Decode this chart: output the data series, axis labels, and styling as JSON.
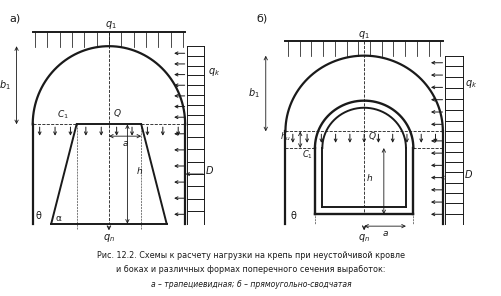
{
  "bg_color": "#ffffff",
  "line_color": "#1a1a1a",
  "fig_width": 5.02,
  "fig_height": 2.96,
  "caption_line1": "Рис. 12.2. Схемы к расчету нагрузки на крепь при неустойчивой кровле",
  "caption_line2": "и боках и различных формах поперечного сечения выработок:",
  "caption_line3": "а – трапециевидная; б – прямоугольно-сводчатая",
  "label_a": "а)",
  "label_b": "б)"
}
